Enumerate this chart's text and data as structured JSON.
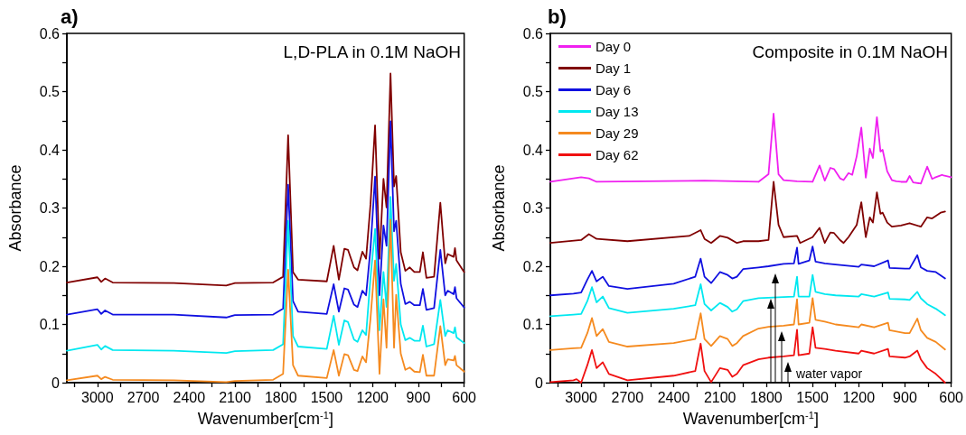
{
  "chart_data": [
    {
      "type": "line",
      "title": "a)",
      "subtitle": "L,D-PLA in 0.1M NaOH",
      "xlabel": "Wavenumber[cm$^{-1}$]",
      "ylabel": "Absorbance",
      "xlim": [
        3200,
        600
      ],
      "ylim": [
        0,
        0.6
      ],
      "xticks": [
        {
          "value": 3150,
          "label": null
        },
        3000,
        {
          "value": 2850,
          "label": null
        },
        2700,
        {
          "value": 2550,
          "label": null
        },
        2400,
        {
          "value": 2250,
          "label": null
        },
        2100,
        {
          "value": 1950,
          "label": null
        },
        1800,
        {
          "value": 1650,
          "label": null
        },
        1500,
        {
          "value": 1350,
          "label": null
        },
        1200,
        {
          "value": 1050,
          "label": null
        },
        900,
        {
          "value": 750,
          "label": null
        },
        600
      ],
      "yticks": [
        0,
        {
          "value": 0.05,
          "label": null
        },
        0.1,
        {
          "value": 0.15,
          "label": null
        },
        0.2,
        {
          "value": 0.25,
          "label": null
        },
        0.3,
        {
          "value": 0.35,
          "label": null
        },
        0.4,
        {
          "value": 0.45,
          "label": null
        },
        0.5,
        {
          "value": 0.55,
          "label": null
        },
        0.6
      ],
      "marker": "none",
      "line_style": "solid",
      "grid": false,
      "series": [
        {
          "color": "#800000",
          "x": [
            3200,
            3000,
            2975,
            2950,
            2900,
            2500,
            2157,
            2100,
            1850,
            1785,
            1752,
            1720,
            1687,
            1499,
            1454,
            1420,
            1384,
            1360,
            1321,
            1298,
            1266,
            1242,
            1213,
            1183,
            1154,
            1128,
            1108,
            1082,
            1059,
            1045,
            1015,
            985,
            956,
            926,
            890,
            870,
            847,
            797,
            756,
            724,
            708,
            669,
            660,
            650,
            600
          ],
          "values": [
            0.172,
            0.181,
            0.173,
            0.179,
            0.172,
            0.171,
            0.167,
            0.171,
            0.172,
            0.182,
            0.425,
            0.19,
            0.177,
            0.174,
            0.235,
            0.177,
            0.23,
            0.228,
            0.198,
            0.193,
            0.225,
            0.213,
            0.306,
            0.442,
            0.213,
            0.35,
            0.301,
            0.531,
            0.337,
            0.355,
            0.224,
            0.192,
            0.198,
            0.19,
            0.19,
            0.224,
            0.18,
            0.182,
            0.309,
            0.205,
            0.221,
            0.216,
            0.231,
            0.21,
            0.19
          ]
        },
        {
          "color": "#1010e0",
          "x": [
            3200,
            3000,
            2975,
            2950,
            2900,
            2500,
            2157,
            2100,
            1850,
            1785,
            1752,
            1720,
            1687,
            1499,
            1454,
            1420,
            1384,
            1360,
            1321,
            1298,
            1266,
            1242,
            1213,
            1183,
            1154,
            1128,
            1108,
            1082,
            1059,
            1045,
            1015,
            985,
            956,
            926,
            890,
            870,
            847,
            797,
            756,
            724,
            708,
            669,
            660,
            650,
            600
          ],
          "values": [
            0.117,
            0.126,
            0.118,
            0.124,
            0.117,
            0.117,
            0.112,
            0.116,
            0.117,
            0.127,
            0.34,
            0.14,
            0.122,
            0.118,
            0.169,
            0.122,
            0.162,
            0.16,
            0.134,
            0.13,
            0.158,
            0.15,
            0.23,
            0.354,
            0.15,
            0.27,
            0.235,
            0.449,
            0.26,
            0.278,
            0.17,
            0.135,
            0.139,
            0.133,
            0.133,
            0.161,
            0.125,
            0.128,
            0.228,
            0.15,
            0.158,
            0.152,
            0.164,
            0.145,
            0.129
          ]
        },
        {
          "color": "#00e8f0",
          "x": [
            3200,
            3000,
            2975,
            2950,
            2900,
            2500,
            2157,
            2100,
            1850,
            1785,
            1752,
            1720,
            1687,
            1499,
            1454,
            1420,
            1384,
            1360,
            1321,
            1298,
            1266,
            1242,
            1213,
            1183,
            1154,
            1128,
            1108,
            1082,
            1059,
            1045,
            1015,
            985,
            956,
            926,
            890,
            870,
            847,
            797,
            756,
            724,
            708,
            669,
            660,
            650,
            600
          ],
          "values": [
            0.055,
            0.065,
            0.057,
            0.063,
            0.056,
            0.055,
            0.051,
            0.054,
            0.056,
            0.066,
            0.278,
            0.08,
            0.062,
            0.058,
            0.115,
            0.065,
            0.107,
            0.104,
            0.074,
            0.07,
            0.09,
            0.082,
            0.18,
            0.264,
            0.09,
            0.19,
            0.13,
            0.319,
            0.175,
            0.204,
            0.1,
            0.073,
            0.077,
            0.072,
            0.072,
            0.098,
            0.062,
            0.066,
            0.142,
            0.08,
            0.09,
            0.085,
            0.095,
            0.078,
            0.068
          ]
        },
        {
          "color": "#f58a1f",
          "x": [
            3200,
            3000,
            2975,
            2950,
            2900,
            2500,
            2157,
            2100,
            1850,
            1785,
            1752,
            1720,
            1687,
            1499,
            1454,
            1420,
            1384,
            1360,
            1321,
            1298,
            1266,
            1242,
            1213,
            1183,
            1154,
            1128,
            1108,
            1082,
            1059,
            1045,
            1015,
            985,
            956,
            926,
            890,
            870,
            847,
            797,
            756,
            724,
            708,
            669,
            660,
            650,
            600
          ],
          "values": [
            0.004,
            0.012,
            0.006,
            0.01,
            0.005,
            0.004,
            0.001,
            0.003,
            0.005,
            0.015,
            0.194,
            0.03,
            0.012,
            0.008,
            0.056,
            0.012,
            0.049,
            0.047,
            0.022,
            0.02,
            0.045,
            0.035,
            0.11,
            0.21,
            0.015,
            0.143,
            0.06,
            0.28,
            0.06,
            0.151,
            0.05,
            0.022,
            0.026,
            0.019,
            0.018,
            0.048,
            0.012,
            0.012,
            0.097,
            0.03,
            0.04,
            0.038,
            0.046,
            0.03,
            0.019
          ]
        }
      ]
    },
    {
      "type": "line",
      "title": "b)",
      "subtitle": "Composite in 0.1M NaOH",
      "xlabel": "Wavenumber[cm$^{-1}$]",
      "ylabel": "Absorbance",
      "xlim": [
        3200,
        600
      ],
      "ylim": [
        0,
        0.6
      ],
      "xticks": [
        {
          "value": 3150,
          "label": null
        },
        3000,
        {
          "value": 2850,
          "label": null
        },
        2700,
        {
          "value": 2550,
          "label": null
        },
        2400,
        {
          "value": 2250,
          "label": null
        },
        2100,
        {
          "value": 1950,
          "label": null
        },
        1800,
        {
          "value": 1650,
          "label": null
        },
        1500,
        {
          "value": 1350,
          "label": null
        },
        1200,
        {
          "value": 1050,
          "label": null
        },
        900,
        {
          "value": 750,
          "label": null
        },
        600
      ],
      "yticks": [
        0,
        {
          "value": 0.05,
          "label": null
        },
        0.1,
        {
          "value": 0.15,
          "label": null
        },
        0.2,
        {
          "value": 0.25,
          "label": null
        },
        0.3,
        {
          "value": 0.35,
          "label": null
        },
        0.4,
        {
          "value": 0.45,
          "label": null
        },
        0.5,
        {
          "value": 0.55,
          "label": null
        },
        0.6
      ],
      "marker": "none",
      "line_style": "solid",
      "grid": false,
      "legend": "top left",
      "annotations": [
        "water vapor"
      ],
      "series": [
        {
          "name": "Day 0",
          "color": "#f020f0",
          "x": [
            3200,
            3000,
            2950,
            2900,
            2200,
            1850,
            1785,
            1752,
            1720,
            1687,
            1600,
            1499,
            1454,
            1420,
            1384,
            1360,
            1321,
            1298,
            1266,
            1242,
            1213,
            1183,
            1154,
            1128,
            1108,
            1082,
            1059,
            1045,
            1015,
            985,
            956,
            926,
            890,
            870,
            847,
            797,
            756,
            724,
            708,
            669,
            660,
            650,
            600
          ],
          "values": [
            0.345,
            0.353,
            0.351,
            0.345,
            0.347,
            0.345,
            0.358,
            0.462,
            0.358,
            0.348,
            0.346,
            0.345,
            0.373,
            0.347,
            0.369,
            0.367,
            0.351,
            0.348,
            0.36,
            0.357,
            0.389,
            0.438,
            0.352,
            0.402,
            0.386,
            0.456,
            0.397,
            0.4,
            0.363,
            0.348,
            0.346,
            0.345,
            0.345,
            0.355,
            0.344,
            0.342,
            0.371,
            0.35,
            0.352,
            0.356,
            0.357,
            0.356,
            0.353
          ]
        },
        {
          "name": "Day 1",
          "color": "#800000",
          "x": [
            3200,
            3000,
            2950,
            2900,
            2700,
            2300,
            2225,
            2200,
            2157,
            2100,
            2050,
            1990,
            1950,
            1850,
            1785,
            1752,
            1720,
            1687,
            1600,
            1580,
            1499,
            1454,
            1420,
            1384,
            1360,
            1321,
            1298,
            1266,
            1213,
            1183,
            1154,
            1128,
            1108,
            1082,
            1059,
            1045,
            1015,
            985,
            926,
            870,
            797,
            756,
            724,
            669,
            640
          ],
          "values": [
            0.24,
            0.245,
            0.255,
            0.247,
            0.243,
            0.252,
            0.262,
            0.247,
            0.24,
            0.252,
            0.249,
            0.24,
            0.243,
            0.243,
            0.245,
            0.345,
            0.271,
            0.25,
            0.252,
            0.24,
            0.25,
            0.266,
            0.24,
            0.258,
            0.257,
            0.245,
            0.24,
            0.25,
            0.271,
            0.31,
            0.25,
            0.284,
            0.275,
            0.327,
            0.29,
            0.292,
            0.275,
            0.268,
            0.27,
            0.274,
            0.268,
            0.284,
            0.282,
            0.292,
            0.294
          ]
        },
        {
          "name": "Day 6",
          "color": "#1010e0",
          "x": [
            3200,
            3050,
            3000,
            2960,
            2930,
            2900,
            2860,
            2820,
            2700,
            2400,
            2260,
            2225,
            2200,
            2157,
            2100,
            2050,
            2020,
            1990,
            1950,
            1850,
            1785,
            1687,
            1620,
            1600,
            1590,
            1520,
            1499,
            1480,
            1420,
            1350,
            1200,
            1183,
            1100,
            1010,
            1000,
            900,
            870,
            820,
            797,
            756,
            700,
            640
          ],
          "values": [
            0.15,
            0.153,
            0.155,
            0.177,
            0.192,
            0.174,
            0.182,
            0.166,
            0.161,
            0.17,
            0.182,
            0.213,
            0.182,
            0.171,
            0.19,
            0.185,
            0.179,
            0.182,
            0.195,
            0.198,
            0.2,
            0.204,
            0.205,
            0.232,
            0.204,
            0.21,
            0.234,
            0.208,
            0.205,
            0.203,
            0.199,
            0.203,
            0.2,
            0.21,
            0.197,
            0.196,
            0.196,
            0.219,
            0.198,
            0.192,
            0.19,
            0.179
          ]
        },
        {
          "name": "Day 13",
          "color": "#00e8f0",
          "x": [
            3200,
            3050,
            3000,
            2960,
            2930,
            2900,
            2860,
            2820,
            2700,
            2400,
            2260,
            2225,
            2200,
            2157,
            2100,
            2050,
            2020,
            1990,
            1950,
            1850,
            1785,
            1687,
            1620,
            1600,
            1590,
            1520,
            1499,
            1480,
            1420,
            1350,
            1200,
            1183,
            1100,
            1010,
            1000,
            900,
            870,
            820,
            797,
            756,
            700,
            640
          ],
          "values": [
            0.114,
            0.117,
            0.118,
            0.14,
            0.164,
            0.138,
            0.148,
            0.128,
            0.12,
            0.127,
            0.133,
            0.169,
            0.135,
            0.124,
            0.137,
            0.13,
            0.122,
            0.126,
            0.14,
            0.145,
            0.146,
            0.147,
            0.148,
            0.182,
            0.148,
            0.148,
            0.185,
            0.156,
            0.152,
            0.15,
            0.148,
            0.152,
            0.148,
            0.155,
            0.144,
            0.143,
            0.142,
            0.156,
            0.145,
            0.135,
            0.127,
            0.116
          ]
        },
        {
          "name": "Day 29",
          "color": "#f58a1f",
          "x": [
            3200,
            3050,
            3000,
            2960,
            2930,
            2900,
            2860,
            2820,
            2700,
            2400,
            2260,
            2225,
            2200,
            2157,
            2100,
            2050,
            2020,
            1990,
            1950,
            1850,
            1785,
            1687,
            1620,
            1600,
            1590,
            1520,
            1499,
            1480,
            1420,
            1350,
            1200,
            1183,
            1100,
            1010,
            1000,
            900,
            870,
            820,
            797,
            756,
            700,
            640
          ],
          "values": [
            0.056,
            0.059,
            0.06,
            0.085,
            0.111,
            0.08,
            0.092,
            0.07,
            0.062,
            0.068,
            0.075,
            0.119,
            0.075,
            0.063,
            0.08,
            0.075,
            0.063,
            0.068,
            0.08,
            0.093,
            0.096,
            0.098,
            0.1,
            0.143,
            0.1,
            0.103,
            0.145,
            0.108,
            0.105,
            0.1,
            0.095,
            0.1,
            0.095,
            0.103,
            0.09,
            0.085,
            0.085,
            0.11,
            0.09,
            0.077,
            0.07,
            0.057
          ]
        },
        {
          "name": "Day 62",
          "color": "#f01010",
          "x": [
            3200,
            3050,
            3030,
            3000,
            2960,
            2930,
            2900,
            2860,
            2820,
            2700,
            2400,
            2260,
            2225,
            2200,
            2157,
            2100,
            2050,
            2020,
            1990,
            1950,
            1850,
            1785,
            1687,
            1620,
            1600,
            1590,
            1520,
            1499,
            1480,
            1420,
            1350,
            1200,
            1183,
            1100,
            1010,
            1000,
            900,
            870,
            820,
            797,
            756,
            700,
            640
          ],
          "values": [
            0.001,
            0.004,
            0.006,
            0.0,
            0.03,
            0.056,
            0.025,
            0.035,
            0.015,
            0.004,
            0.012,
            0.02,
            0.067,
            0.02,
            0.001,
            0.025,
            0.022,
            0.01,
            0.015,
            0.03,
            0.04,
            0.043,
            0.045,
            0.047,
            0.091,
            0.047,
            0.05,
            0.095,
            0.06,
            0.058,
            0.055,
            0.05,
            0.055,
            0.05,
            0.058,
            0.045,
            0.043,
            0.045,
            0.055,
            0.04,
            0.025,
            0.015,
            0.0
          ]
        }
      ]
    }
  ]
}
